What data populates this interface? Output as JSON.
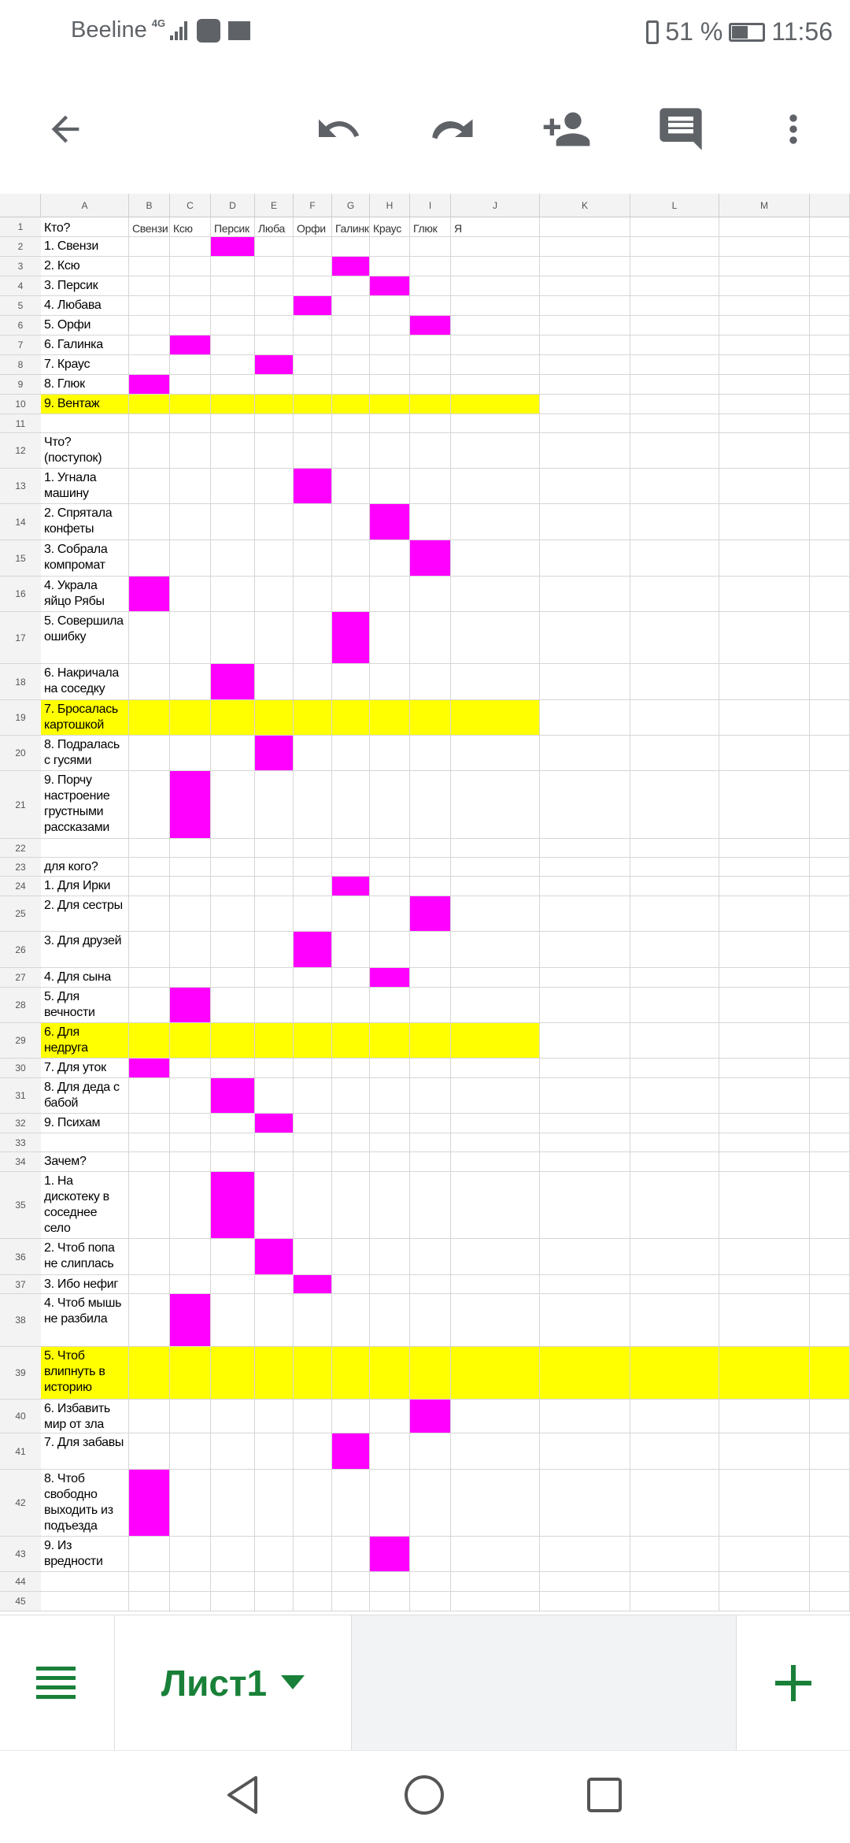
{
  "status_bar": {
    "carrier": "Beeline",
    "network": "4G",
    "battery": "51 %",
    "time": "11:56"
  },
  "toolbar": {
    "icons": [
      "back-arrow-icon",
      "undo-icon",
      "redo-icon",
      "add-person-icon",
      "comment-icon",
      "more-vert-icon"
    ]
  },
  "columns": [
    "A",
    "B",
    "C",
    "D",
    "E",
    "F",
    "G",
    "H",
    "I",
    "J",
    "K",
    "L",
    "M"
  ],
  "colors": {
    "magenta": "#ff00ff",
    "yellow": "#ffff00",
    "green": "#188038"
  },
  "header_row": {
    "A": "Кто?",
    "B": "Свензи",
    "C": "Ксю",
    "D": "Персик",
    "E": "Люба",
    "F": "Орфи",
    "G": "Галинка",
    "H": "Краус",
    "I": "Глюк",
    "J": "Я"
  },
  "rows": [
    {
      "n": "1"
    },
    {
      "n": "2",
      "text": "1. Свензи",
      "mark": "D"
    },
    {
      "n": "3",
      "text": "2. Ксю",
      "mark": "G"
    },
    {
      "n": "4",
      "text": "3. Персик",
      "mark": "H"
    },
    {
      "n": "5",
      "text": "4. Любава",
      "mark": "F"
    },
    {
      "n": "6",
      "text": "5. Орфи",
      "mark": "I"
    },
    {
      "n": "7",
      "text": "6. Галинка",
      "mark": "C"
    },
    {
      "n": "8",
      "text": "7. Краус",
      "mark": "E"
    },
    {
      "n": "9",
      "text": "8. Глюк",
      "mark": "B"
    },
    {
      "n": "10",
      "text": "9. Вентаж",
      "highlight": "row"
    },
    {
      "n": "11",
      "text": ""
    },
    {
      "n": "12",
      "text": "Что? (поступок)"
    },
    {
      "n": "13",
      "text": "1. Угнала машину",
      "mark": "F"
    },
    {
      "n": "14",
      "text": "2. Спрятала конфеты",
      "mark": "H"
    },
    {
      "n": "15",
      "text": "3. Собрала компромат",
      "mark": "I"
    },
    {
      "n": "16",
      "text": "4. Украла яйцо Рябы",
      "mark": "B"
    },
    {
      "n": "17",
      "text": "5. Совершила ошибку",
      "mark": "G"
    },
    {
      "n": "18",
      "text": "6. Накричала на соседку",
      "mark": "D"
    },
    {
      "n": "19",
      "text": "7. Бросалась картошкой",
      "highlight": "row"
    },
    {
      "n": "20",
      "text": "8. Подралась с гусями",
      "mark": "E"
    },
    {
      "n": "21",
      "text": "9. Порчу настроение грустными рассказами",
      "mark": "C"
    },
    {
      "n": "22",
      "text": ""
    },
    {
      "n": "23",
      "text": "для кого?"
    },
    {
      "n": "24",
      "text": "1. Для Ирки",
      "mark": "G"
    },
    {
      "n": "25",
      "text": "2. Для сестры",
      "mark": "I"
    },
    {
      "n": "26",
      "text": "3. Для друзей",
      "mark": "F"
    },
    {
      "n": "27",
      "text": "4. Для сына",
      "mark": "H"
    },
    {
      "n": "28",
      "text": "5. Для вечности",
      "mark": "C"
    },
    {
      "n": "29",
      "text": "6. Для недруга",
      "highlight": "row"
    },
    {
      "n": "30",
      "text": "7. Для уток",
      "mark": "B"
    },
    {
      "n": "31",
      "text": "8. Для деда с бабой",
      "mark": "D"
    },
    {
      "n": "32",
      "text": "9. Психам",
      "mark": "E"
    },
    {
      "n": "33",
      "text": ""
    },
    {
      "n": "34",
      "text": "Зачем?"
    },
    {
      "n": "35",
      "text": "1. На дискотеку в соседнее село",
      "mark": "D"
    },
    {
      "n": "36",
      "text": "2. Чтоб попа не слиплась",
      "mark": "E"
    },
    {
      "n": "37",
      "text": "3. Ибо нефиг",
      "mark": "F"
    },
    {
      "n": "38",
      "text": "4. Чтоб мышь не разбила",
      "mark": "C"
    },
    {
      "n": "39",
      "text": "5. Чтоб влипнуть в историю",
      "highlight": "full"
    },
    {
      "n": "40",
      "text": "6. Избавить мир от зла",
      "mark": "I"
    },
    {
      "n": "41",
      "text": "7. Для забавы",
      "mark": "G"
    },
    {
      "n": "42",
      "text": "8. Чтоб свободно выходить из подъезда",
      "mark": "B"
    },
    {
      "n": "43",
      "text": "9. Из вредности",
      "mark": "H"
    },
    {
      "n": "44",
      "text": ""
    },
    {
      "n": "45",
      "text": ""
    }
  ],
  "sheet_tabs": {
    "active": "Лист1",
    "add_icon": "plus-icon",
    "menu_icon": "hamburger-icon"
  },
  "nav_bar": {
    "icons": [
      "nav-back-icon",
      "nav-home-icon",
      "nav-recents-icon"
    ]
  }
}
